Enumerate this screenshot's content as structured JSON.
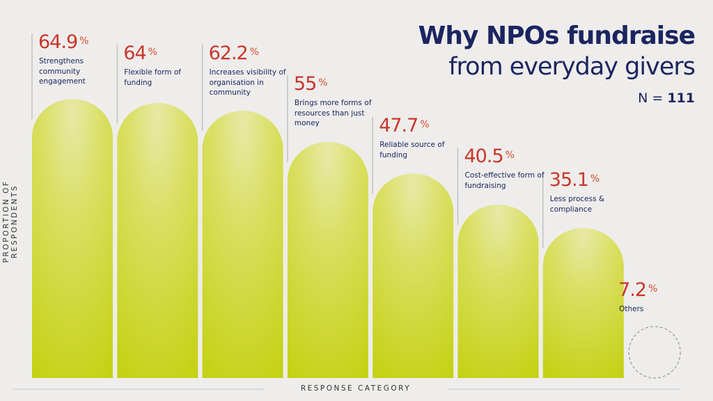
{
  "title": {
    "line1": "Why NPOs fundraise",
    "line2": "from everyday givers",
    "n_label": "N =",
    "n_value": "111"
  },
  "chart_data": {
    "type": "bar",
    "title": "Why NPOs fundraise from everyday givers",
    "xlabel": "RESPONSE CATEGORY",
    "ylabel": "PROPORTION OF RESPONDENTS",
    "unit": "%",
    "categories": [
      "Strengthens community engagement",
      "Flexible form of funding",
      "Increases visibility of organisation in community",
      "Brings more forms of resources than just money",
      "Reliable source of funding",
      "Cost-effective form of fundraising",
      "Less process & compliance",
      "Others"
    ],
    "values": [
      64.9,
      64,
      62.2,
      55,
      47.7,
      40.5,
      35.1,
      7.2
    ],
    "value_labels": [
      "64.9",
      "64",
      "62.2",
      "55",
      "47.7",
      "40.5",
      "35.1",
      "7.2"
    ],
    "ylim": [
      0,
      70
    ],
    "grid": false,
    "colors": {
      "bar_top": "#e8e9a6",
      "bar_bottom": "#c3d00c",
      "value": "#c9362a",
      "text": "#1b2560",
      "others_outline": "#888888"
    }
  }
}
